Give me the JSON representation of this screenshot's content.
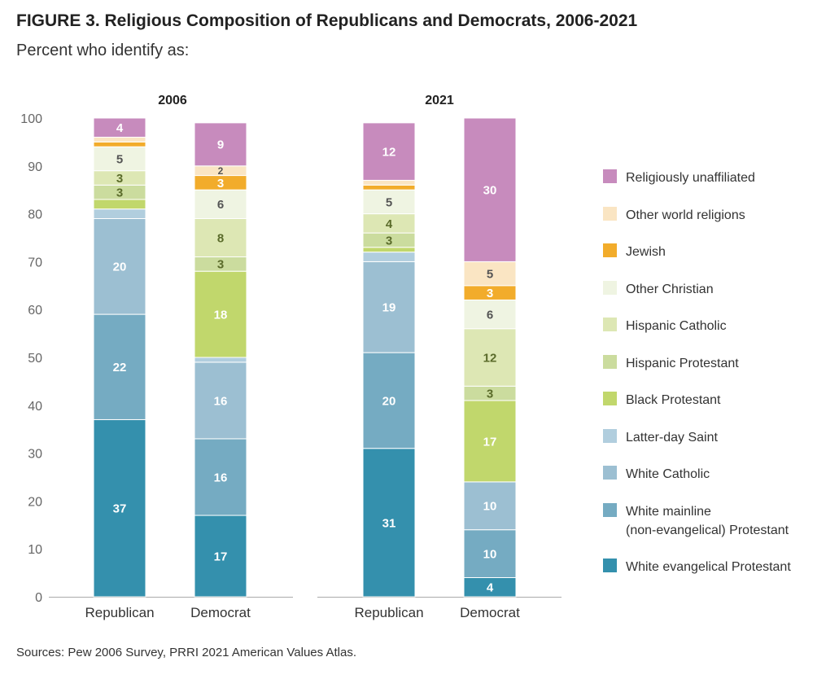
{
  "header": {
    "title": "FIGURE 3.  Religious Composition of Republicans and Democrats, 2006-2021",
    "subtitle": "Percent who identify as:"
  },
  "footer": {
    "source": "Sources: Pew 2006 Survey, PRRI 2021 American Values Atlas."
  },
  "chart_data": {
    "type": "bar",
    "stacked": true,
    "ylim": [
      0,
      100
    ],
    "yticks": [
      0,
      10,
      20,
      30,
      40,
      50,
      60,
      70,
      80,
      90,
      100
    ],
    "grid": false,
    "legend_position": "right",
    "panels": [
      {
        "title": "2006",
        "categories": [
          "Republican",
          "Democrat"
        ],
        "series": [
          {
            "name": "White evangelical Protestant",
            "color": "#3490ad",
            "values": [
              37,
              17
            ],
            "labels": [
              "37",
              "17"
            ]
          },
          {
            "name": "White mainline (non-evangelical) Protestant",
            "color": "#75abc2",
            "values": [
              22,
              16
            ],
            "labels": [
              "22",
              "16"
            ]
          },
          {
            "name": "White Catholic",
            "color": "#9cbfd2",
            "values": [
              20,
              16
            ],
            "labels": [
              "20",
              "16"
            ]
          },
          {
            "name": "Latter-day Saint",
            "color": "#b1cede",
            "values": [
              2,
              1
            ],
            "labels": [
              "",
              ""
            ]
          },
          {
            "name": "Black Protestant",
            "color": "#c1d76c",
            "values": [
              2,
              18
            ],
            "labels": [
              "",
              "18"
            ]
          },
          {
            "name": "Hispanic Protestant",
            "color": "#cbdc9e",
            "values": [
              3,
              3
            ],
            "labels": [
              "3",
              "3"
            ]
          },
          {
            "name": "Hispanic Catholic",
            "color": "#dde7b4",
            "values": [
              3,
              8
            ],
            "labels": [
              "3",
              "8"
            ]
          },
          {
            "name": "Other Christian",
            "color": "#eff4e2",
            "values": [
              5,
              6
            ],
            "labels": [
              "5",
              "6"
            ]
          },
          {
            "name": "Jewish",
            "color": "#f2ac2b",
            "values": [
              1,
              3
            ],
            "labels": [
              "",
              "3"
            ]
          },
          {
            "name": "Other world religions",
            "color": "#fae5c3",
            "values": [
              1,
              2
            ],
            "labels": [
              "",
              "2"
            ]
          },
          {
            "name": "Religiously unaffiliated",
            "color": "#c78bbd",
            "values": [
              4,
              9
            ],
            "labels": [
              "4",
              "9"
            ]
          }
        ]
      },
      {
        "title": "2021",
        "categories": [
          "Republican",
          "Democrat"
        ],
        "series": [
          {
            "name": "White evangelical Protestant",
            "color": "#3490ad",
            "values": [
              31,
              4
            ],
            "labels": [
              "31",
              "4"
            ]
          },
          {
            "name": "White mainline (non-evangelical) Protestant",
            "color": "#75abc2",
            "values": [
              20,
              10
            ],
            "labels": [
              "20",
              "10"
            ]
          },
          {
            "name": "White Catholic",
            "color": "#9cbfd2",
            "values": [
              19,
              10
            ],
            "labels": [
              "19",
              "10"
            ]
          },
          {
            "name": "Latter-day Saint",
            "color": "#b1cede",
            "values": [
              2,
              0
            ],
            "labels": [
              "",
              ""
            ]
          },
          {
            "name": "Black Protestant",
            "color": "#c1d76c",
            "values": [
              1,
              17
            ],
            "labels": [
              "",
              "17"
            ]
          },
          {
            "name": "Hispanic Protestant",
            "color": "#cbdc9e",
            "values": [
              3,
              3
            ],
            "labels": [
              "3",
              "3"
            ]
          },
          {
            "name": "Hispanic Catholic",
            "color": "#dde7b4",
            "values": [
              4,
              12
            ],
            "labels": [
              "4",
              "12"
            ]
          },
          {
            "name": "Other Christian",
            "color": "#eff4e2",
            "values": [
              5,
              6
            ],
            "labels": [
              "5",
              "6"
            ]
          },
          {
            "name": "Jewish",
            "color": "#f2ac2b",
            "values": [
              1,
              3
            ],
            "labels": [
              "",
              "3"
            ]
          },
          {
            "name": "Other world religions",
            "color": "#fae5c3",
            "values": [
              1,
              5
            ],
            "labels": [
              "",
              "5"
            ]
          },
          {
            "name": "Religiously unaffiliated",
            "color": "#c78bbd",
            "values": [
              12,
              30
            ],
            "labels": [
              "12",
              "30"
            ]
          }
        ]
      }
    ],
    "legend": [
      {
        "name": "Religiously unaffiliated",
        "color": "#c78bbd"
      },
      {
        "name": "Other world religions",
        "color": "#fae5c3"
      },
      {
        "name": "Jewish",
        "color": "#f2ac2b"
      },
      {
        "name": "Other Christian",
        "color": "#eff4e2"
      },
      {
        "name": "Hispanic Catholic",
        "color": "#dde7b4"
      },
      {
        "name": "Hispanic Protestant",
        "color": "#cbdc9e"
      },
      {
        "name": "Black Protestant",
        "color": "#c1d76c"
      },
      {
        "name": "Latter-day Saint",
        "color": "#b1cede"
      },
      {
        "name": "White Catholic",
        "color": "#9cbfd2"
      },
      {
        "name": "White mainline (non-evangelical) Protestant",
        "lines": [
          "White mainline",
          "(non-evangelical) Protestant"
        ],
        "color": "#75abc2"
      },
      {
        "name": "White evangelical Protestant",
        "color": "#3490ad"
      }
    ]
  }
}
